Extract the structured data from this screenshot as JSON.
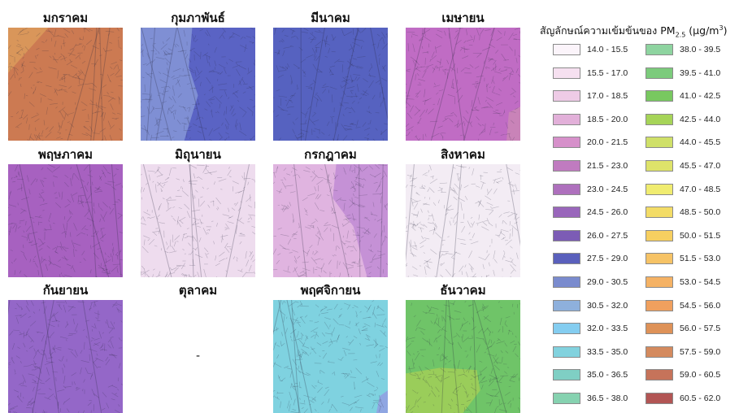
{
  "months": [
    {
      "name": "มกราคม",
      "color": "#cc7a52",
      "accent": "#d9965a",
      "split": "corner"
    },
    {
      "name": "กุมภาพันธ์",
      "color": "#5a63c4",
      "accent": "#7f8fd4",
      "split": "left"
    },
    {
      "name": "มีนาคม",
      "color": "#5662c0",
      "accent": null,
      "split": "none"
    },
    {
      "name": "เมษายน",
      "color": "#c06cc4",
      "accent": "#c983b8",
      "split": "right-edge"
    },
    {
      "name": "พฤษภาคม",
      "color": "#a761c0",
      "accent": null,
      "split": "none"
    },
    {
      "name": "มิถุนายน",
      "color": "#eedcee",
      "accent": null,
      "split": "none"
    },
    {
      "name": "กรกฎาคม",
      "color": "#e0b4e0",
      "accent": "#c591d6",
      "split": "right"
    },
    {
      "name": "สิงหาคม",
      "color": "#f3ecf4",
      "accent": null,
      "split": "none"
    },
    {
      "name": "กันยายน",
      "color": "#9467c8",
      "accent": null,
      "split": "none"
    },
    {
      "name": "ตุลาคม",
      "color": null,
      "accent": null,
      "split": "none",
      "no_data_text": "-"
    },
    {
      "name": "พฤศจิกายน",
      "color": "#7fd2e0",
      "accent": "#8fa6e2",
      "split": "corner-br"
    },
    {
      "name": "ธันวาคม",
      "color": "#6fc468",
      "accent": "#9acd5a",
      "split": "bottom"
    }
  ],
  "legend": {
    "title_main": "สัญลักษณ์ความเข้มข้นของ PM",
    "title_sub": "2.5",
    "title_unit_open": " (µg/m",
    "title_unit_sup": "3",
    "title_unit_close": ")",
    "classes": [
      {
        "label": "14.0 - 15.5",
        "color": "#fbf4fa"
      },
      {
        "label": "15.5 - 17.0",
        "color": "#f6e0f0"
      },
      {
        "label": "17.0 - 18.5",
        "color": "#eecbe6"
      },
      {
        "label": "18.5 - 20.0",
        "color": "#e2b0d9"
      },
      {
        "label": "20.0 - 21.5",
        "color": "#d690ca"
      },
      {
        "label": "21.5 - 23.0",
        "color": "#c07bc0"
      },
      {
        "label": "23.0 - 24.5",
        "color": "#ae70bd"
      },
      {
        "label": "24.5 - 26.0",
        "color": "#9966bb"
      },
      {
        "label": "26.0 - 27.5",
        "color": "#7c5cb5"
      },
      {
        "label": "27.5 - 29.0",
        "color": "#5a60bc"
      },
      {
        "label": "29.0 - 30.5",
        "color": "#7a8bce"
      },
      {
        "label": "30.5 - 32.0",
        "color": "#8eb0dc"
      },
      {
        "label": "32.0 - 33.5",
        "color": "#84cdf0"
      },
      {
        "label": "33.5 - 35.0",
        "color": "#82d2de"
      },
      {
        "label": "35.0 - 36.5",
        "color": "#7fcfc4"
      },
      {
        "label": "36.5 - 38.0",
        "color": "#86d2b0"
      },
      {
        "label": "38.0 - 39.5",
        "color": "#8ed4a0"
      },
      {
        "label": "39.5 - 41.0",
        "color": "#7ccb7c"
      },
      {
        "label": "41.0 - 42.5",
        "color": "#78c860"
      },
      {
        "label": "42.5 - 44.0",
        "color": "#a6d458"
      },
      {
        "label": "44.0 - 45.5",
        "color": "#cfe068"
      },
      {
        "label": "45.5 - 47.0",
        "color": "#dee36a"
      },
      {
        "label": "47.0 - 48.5",
        "color": "#f0ec70"
      },
      {
        "label": "48.5 - 50.0",
        "color": "#f3dc66"
      },
      {
        "label": "50.0 - 51.5",
        "color": "#f7cf60"
      },
      {
        "label": "51.5 - 53.0",
        "color": "#f6c366"
      },
      {
        "label": "53.0 - 54.5",
        "color": "#f5b264"
      },
      {
        "label": "54.5 - 56.0",
        "color": "#f0a05e"
      },
      {
        "label": "56.0 - 57.5",
        "color": "#de9258"
      },
      {
        "label": "57.5 - 59.0",
        "color": "#d48a5e"
      },
      {
        "label": "59.0 - 60.5",
        "color": "#c6735a"
      },
      {
        "label": "60.5 - 62.0",
        "color": "#b25554"
      }
    ]
  }
}
